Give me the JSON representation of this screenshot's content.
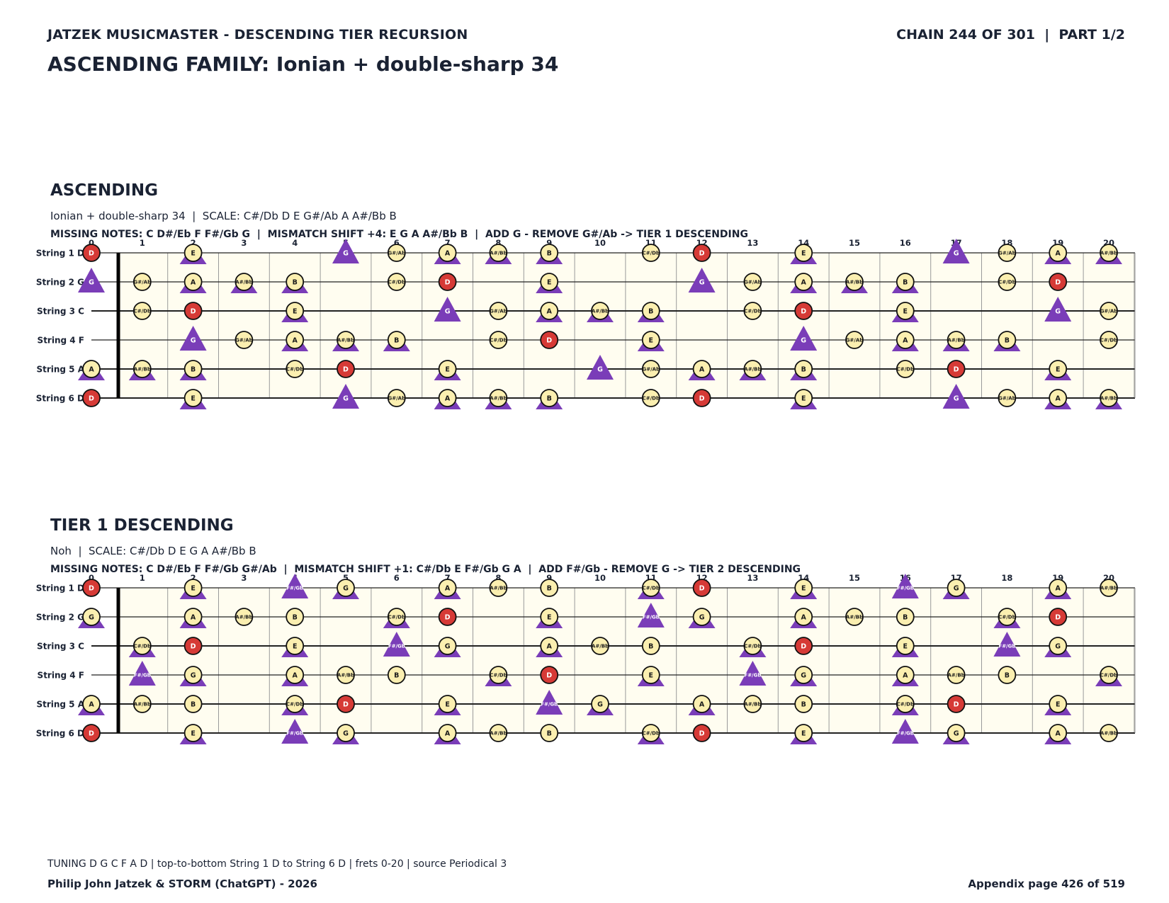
{
  "header": {
    "left": "JATZEK MUSICMASTER - DESCENDING TIER RECURSION",
    "right": "CHAIN 244 OF 301  |  PART 1/2",
    "title": "ASCENDING FAMILY: Ionian + double-sharp 34"
  },
  "sections": [
    {
      "title": "ASCENDING",
      "subtitle": "Ionian + double-sharp 34  |  SCALE: C#/Db D E G#/Ab A A#/Bb B",
      "missing": "MISSING NOTES: C D#/Eb F F#/Gb G  |  MISMATCH SHIFT +4: E G A A#/Bb B  |  ADD G - REMOVE G#/Ab -> TIER 1 DESCENDING",
      "fret_labels": [
        "0",
        "1",
        "2",
        "3",
        "4",
        "5",
        "6",
        "7",
        "8",
        "9",
        "10",
        "11",
        "12",
        "13",
        "14",
        "15",
        "16",
        "17",
        "18",
        "19",
        "20"
      ],
      "strings": [
        {
          "label": "String 1 D",
          "notes": [
            "D",
            "",
            "E",
            "",
            "",
            "G",
            "G#/Ab",
            "A",
            "A#/Bb",
            "B",
            "",
            "C#/Db",
            "D",
            "",
            "E",
            "",
            "",
            "G",
            "G#/Ab",
            "A",
            "A#/Bb"
          ]
        },
        {
          "label": "String 2 G",
          "notes": [
            "G",
            "G#/Ab",
            "A",
            "A#/Bb",
            "B",
            "",
            "C#/Db",
            "D",
            "",
            "E",
            "",
            "",
            "G",
            "G#/Ab",
            "A",
            "A#/Bb",
            "B",
            "",
            "C#/Db",
            "D",
            ""
          ]
        },
        {
          "label": "String 3 C",
          "notes": [
            "",
            "C#/Db",
            "D",
            "",
            "E",
            "",
            "",
            "G",
            "G#/Ab",
            "A",
            "A#/Bb",
            "B",
            "",
            "C#/Db",
            "D",
            "",
            "E",
            "",
            "",
            "G",
            "G#/Ab"
          ]
        },
        {
          "label": "String 4 F",
          "notes": [
            "",
            "",
            "G",
            "G#/Ab",
            "A",
            "A#/Bb",
            "B",
            "",
            "C#/Db",
            "D",
            "",
            "E",
            "",
            "",
            "G",
            "G#/Ab",
            "A",
            "A#/Bb",
            "B",
            "",
            "C#/Db"
          ]
        },
        {
          "label": "String 5 A",
          "notes": [
            "A",
            "A#/Bb",
            "B",
            "",
            "C#/Db",
            "D",
            "",
            "E",
            "",
            "",
            "G",
            "G#/Ab",
            "A",
            "A#/Bb",
            "B",
            "",
            "C#/Db",
            "D",
            "",
            "E",
            ""
          ]
        },
        {
          "label": "String 6 D",
          "notes": [
            "D",
            "",
            "E",
            "",
            "",
            "G",
            "G#/Ab",
            "A",
            "A#/Bb",
            "B",
            "",
            "C#/Db",
            "D",
            "",
            "E",
            "",
            "",
            "G",
            "G#/Ab",
            "A",
            "A#/Bb"
          ]
        }
      ],
      "root": "D",
      "circle_notes": [
        "D",
        "E",
        "G#/Ab",
        "A",
        "A#/Bb",
        "B",
        "C#/Db"
      ],
      "triangle_notes": [
        "G",
        "E",
        "A",
        "A#/Bb",
        "B"
      ]
    },
    {
      "title": "TIER 1 DESCENDING",
      "subtitle": "Noh  |  SCALE: C#/Db D E G A A#/Bb B",
      "missing": "MISSING NOTES: C D#/Eb F F#/Gb G#/Ab  |  MISMATCH SHIFT +1: C#/Db E F#/Gb G A  |  ADD F#/Gb - REMOVE G -> TIER 2 DESCENDING",
      "fret_labels": [
        "0",
        "1",
        "2",
        "3",
        "4",
        "5",
        "6",
        "7",
        "8",
        "9",
        "10",
        "11",
        "12",
        "13",
        "14",
        "15",
        "16",
        "17",
        "18",
        "19",
        "20"
      ],
      "strings": [
        {
          "label": "String 1 D",
          "notes": [
            "D",
            "",
            "E",
            "",
            "F#/Gb",
            "G",
            "",
            "A",
            "A#/Bb",
            "B",
            "",
            "C#/Db",
            "D",
            "",
            "E",
            "",
            "F#/Gb",
            "G",
            "",
            "A",
            "A#/Bb"
          ]
        },
        {
          "label": "String 2 G",
          "notes": [
            "G",
            "",
            "A",
            "A#/Bb",
            "B",
            "",
            "C#/Db",
            "D",
            "",
            "E",
            "",
            "F#/Gb",
            "G",
            "",
            "A",
            "A#/Bb",
            "B",
            "",
            "C#/Db",
            "D",
            ""
          ]
        },
        {
          "label": "String 3 C",
          "notes": [
            "",
            "C#/Db",
            "D",
            "",
            "E",
            "",
            "F#/Gb",
            "G",
            "",
            "A",
            "A#/Bb",
            "B",
            "",
            "C#/Db",
            "D",
            "",
            "E",
            "",
            "F#/Gb",
            "G",
            ""
          ]
        },
        {
          "label": "String 4 F",
          "notes": [
            "",
            "F#/Gb",
            "G",
            "",
            "A",
            "A#/Bb",
            "B",
            "",
            "C#/Db",
            "D",
            "",
            "E",
            "",
            "F#/Gb",
            "G",
            "",
            "A",
            "A#/Bb",
            "B",
            "",
            "C#/Db"
          ]
        },
        {
          "label": "String 5 A",
          "notes": [
            "A",
            "A#/Bb",
            "B",
            "",
            "C#/Db",
            "D",
            "",
            "E",
            "",
            "F#/Gb",
            "G",
            "",
            "A",
            "A#/Bb",
            "B",
            "",
            "C#/Db",
            "D",
            "",
            "E",
            ""
          ]
        },
        {
          "label": "String 6 D",
          "notes": [
            "D",
            "",
            "E",
            "",
            "F#/Gb",
            "G",
            "",
            "A",
            "A#/Bb",
            "B",
            "",
            "C#/Db",
            "D",
            "",
            "E",
            "",
            "F#/Gb",
            "G",
            "",
            "A",
            "A#/Bb"
          ]
        }
      ],
      "root": "D",
      "circle_notes": [
        "D",
        "E",
        "G",
        "A",
        "A#/Bb",
        "B",
        "C#/Db"
      ],
      "triangle_notes": [
        "F#/Gb",
        "C#/Db",
        "E",
        "G",
        "A"
      ]
    }
  ],
  "colors": {
    "triangle": "#7a3db8",
    "circle_fill": "#fbefb0",
    "root_fill": "#d63a36",
    "board_fill": "#fffdf0",
    "text": "#1a2233"
  },
  "footer": {
    "note": "TUNING D G C F A D | top-to-bottom String 1 D to String 6 D | frets 0-20 | source Periodical 3",
    "left": "Philip John Jatzek & STORM (ChatGPT) - 2026",
    "right": "Appendix page 426 of 519"
  }
}
